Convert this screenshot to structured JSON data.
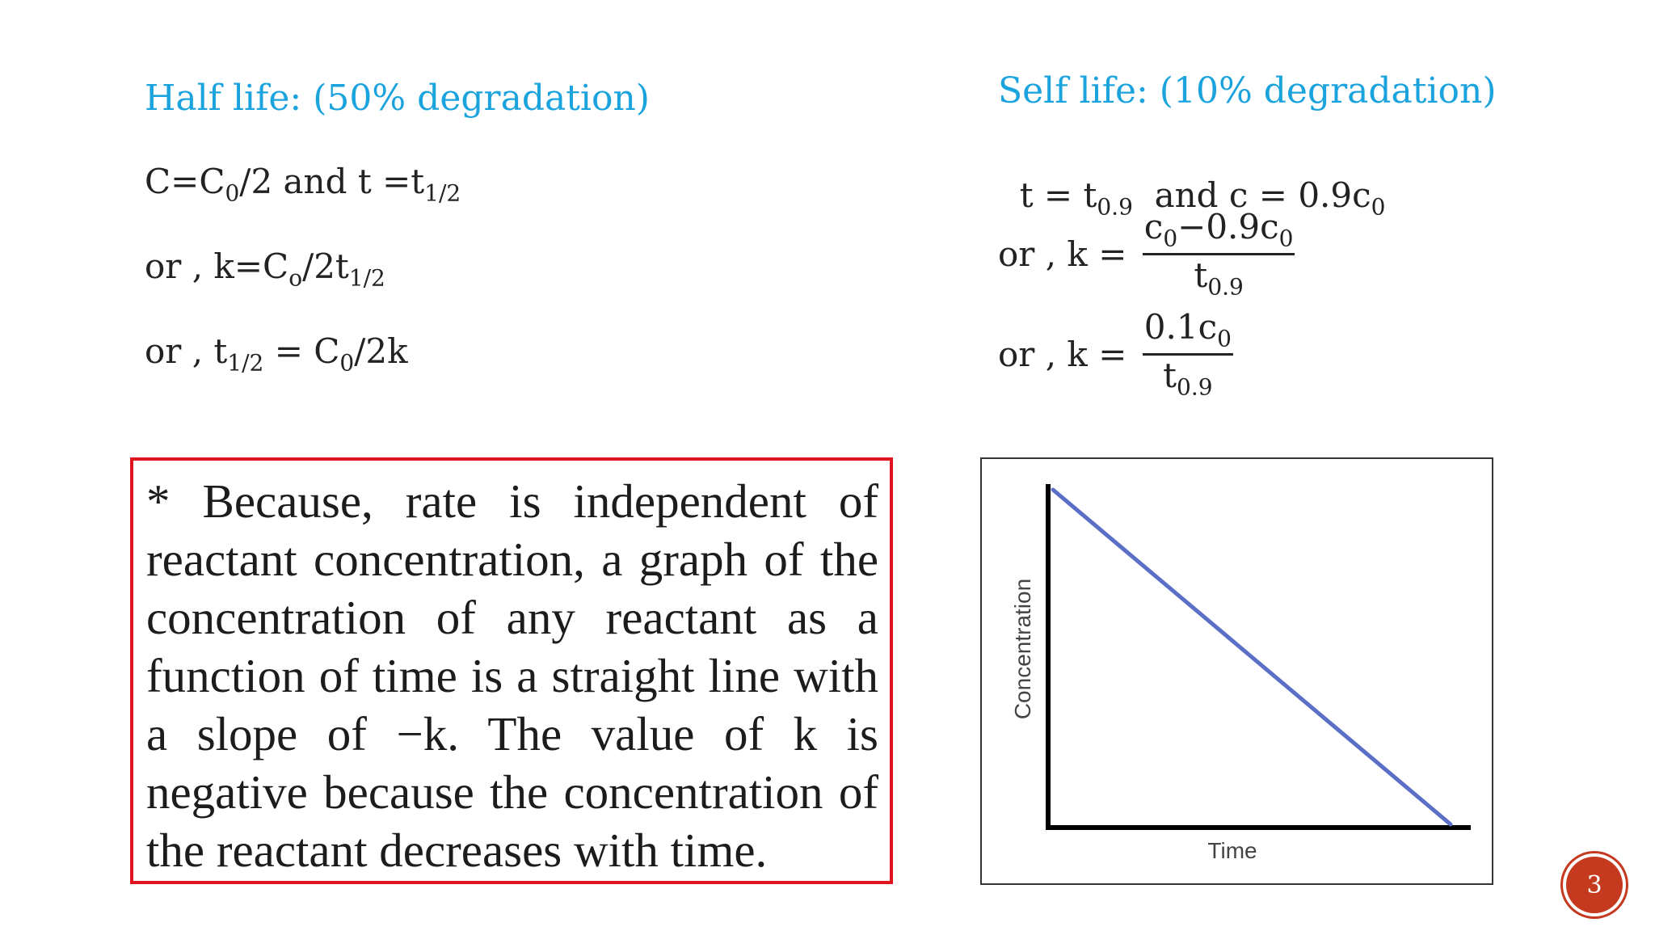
{
  "left": {
    "heading": "Half life: (50% degradation)",
    "eq1": {
      "a": "C=C",
      "a_sub": "0",
      "b": "/2 and t =t",
      "b_sub": "1/2"
    },
    "eq2": {
      "a": "or , k=C",
      "a_sub": "o",
      "b": "/2t",
      "b_sub": "1/2"
    },
    "eq3": {
      "a": "or , t",
      "a_sub": "1/2",
      "b": " = C",
      "b_sub": "0",
      "c": "/2k"
    }
  },
  "right": {
    "heading": "Self life: (10% degradation)",
    "eq1": {
      "a": "t = t",
      "a_sub": "0.9",
      "b": "  and c = 0.9c",
      "b_sub": "0"
    },
    "eq2": {
      "prefix": "or , k =",
      "num_a": "c",
      "num_a_sub": "0",
      "num_b": "−0.9c",
      "num_b_sub": "0",
      "den": "t",
      "den_sub": "0.9"
    },
    "eq3": {
      "prefix": "or , k =",
      "num_a": "0.1c",
      "num_a_sub": "0",
      "den": "t",
      "den_sub": "0.9"
    }
  },
  "note": {
    "text": "* Because, rate is independent of reactant concentration, a graph of the concentration of any reactant as a function of time is a straight line with a slope of −k. The value of k is negative because the concentration of the reactant decreases with time."
  },
  "chart_data": {
    "type": "line",
    "title": "",
    "xlabel": "Time",
    "ylabel": "Concentration",
    "series": [
      {
        "x": [
          0,
          1
        ],
        "values": [
          1,
          0
        ]
      }
    ],
    "xlim": [
      0,
      1
    ],
    "ylim": [
      0,
      1
    ],
    "grid": false,
    "line_color": "#5b6fc7",
    "axis_color": "#000000"
  },
  "page_number": "3",
  "colors": {
    "heading": "#1ba3dd",
    "note_border": "#e0141e",
    "badge": "#c53a1f"
  }
}
